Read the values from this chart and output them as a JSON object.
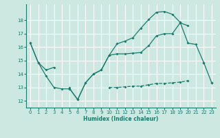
{
  "xlabel": "Humidex (Indice chaleur)",
  "bg_color": "#cce8e0",
  "line_color": "#1a7a6e",
  "grid_color": "#ffffff",
  "xlim": [
    -0.5,
    23.5
  ],
  "ylim": [
    11.5,
    19.2
  ],
  "yticks": [
    12,
    13,
    14,
    15,
    16,
    17,
    18
  ],
  "xticks": [
    0,
    1,
    2,
    3,
    4,
    5,
    6,
    7,
    8,
    9,
    10,
    11,
    12,
    13,
    14,
    15,
    16,
    17,
    18,
    19,
    20,
    21,
    22,
    23
  ],
  "series1_y": [
    16.3,
    14.85,
    null,
    null,
    null,
    null,
    null,
    null,
    null,
    null,
    null,
    null,
    null,
    null,
    null,
    null,
    null,
    null,
    null,
    null,
    null,
    null,
    null,
    null
  ],
  "series2_y": [
    16.3,
    14.85,
    13.85,
    13.0,
    12.9,
    12.9,
    12.1,
    13.35,
    14.0,
    14.3,
    15.4,
    16.25,
    16.45,
    16.7,
    17.4,
    18.05,
    18.6,
    18.65,
    18.45,
    17.85,
    16.3,
    16.2,
    14.85,
    13.35
  ],
  "series3_y": [
    16.3,
    14.85,
    14.3,
    14.5,
    null,
    12.9,
    12.1,
    13.35,
    14.0,
    14.3,
    15.4,
    15.5,
    15.5,
    15.55,
    15.6,
    16.1,
    16.85,
    17.0,
    17.0,
    17.8,
    17.6,
    null,
    14.85,
    null
  ],
  "series4_y": [
    null,
    null,
    null,
    null,
    null,
    13.0,
    null,
    null,
    null,
    null,
    13.0,
    13.0,
    13.05,
    13.1,
    13.1,
    13.2,
    13.3,
    13.3,
    13.35,
    13.4,
    13.5,
    null,
    null,
    13.35
  ]
}
